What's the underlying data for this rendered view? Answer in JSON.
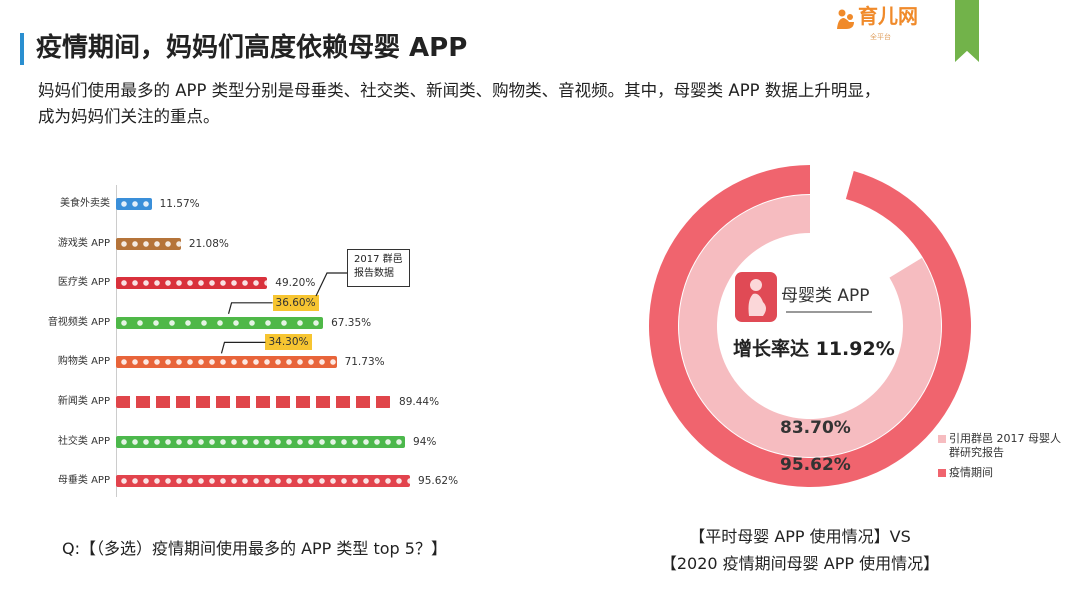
{
  "header": {
    "title": "疫情期间，妈妈们高度依赖母婴 APP",
    "subtitle_line1": "妈妈们使用最多的 APP 类型分别是母垂类、社交类、新闻类、购物类、音视频。其中，母婴类 APP 数据上升明显，",
    "subtitle_line2": "成为妈妈们关注的重点。",
    "logo_text": "育儿网",
    "logo_sub": "全平台",
    "ribbon_color": "#72b34a",
    "accent_color": "#2a8fd0"
  },
  "chart_data": [
    {
      "type": "bar",
      "orientation": "horizontal",
      "categories": [
        "美食外卖类",
        "游戏类 APP",
        "医疗类 APP",
        "音视频类 APP",
        "购物类 APP",
        "新闻类 APP",
        "社交类 APP",
        "母垂类 APP"
      ],
      "values": [
        11.57,
        21.08,
        49.2,
        67.35,
        71.73,
        89.44,
        94,
        95.62
      ],
      "labels": [
        "11.57%",
        "21.08%",
        "49.20%",
        "67.35%",
        "71.73%",
        "89.44%",
        "94%",
        "95.62%"
      ],
      "colors": [
        "#3a8fd9",
        "#b5743a",
        "#d9313c",
        "#4fb848",
        "#e8643a",
        "#e0454a",
        "#4cb84c",
        "#e2434d"
      ],
      "icons": [
        "food-delivery-icon",
        "game-icon",
        "medical-icon",
        "video-play-icon",
        "shopping-icon",
        "news-icon",
        "wechat-icon",
        "mother-baby-icon"
      ],
      "annotations": [
        {
          "category": "音视频类 APP",
          "value": 36.6,
          "label": "36.60%"
        },
        {
          "category": "购物类 APP",
          "value": 34.3,
          "label": "34.30%"
        }
      ],
      "callout": {
        "line1": "2017 群邑",
        "line2": "报告数据"
      },
      "question": "Q:【（多选）疫情期间使用最多的 APP 类型 top 5？】"
    },
    {
      "type": "pie",
      "subtype": "donut",
      "series": [
        {
          "name": "引用群邑 2017 母婴人群研究报告",
          "value": 83.7,
          "label": "83.70%",
          "color": "#f6bcc0"
        },
        {
          "name": "疫情期间",
          "value": 95.62,
          "label": "95.62%",
          "color": "#f0646e"
        }
      ],
      "center": {
        "app_label": "母婴类 APP",
        "growth": "增长率达 11.92%"
      },
      "legend": {
        "placement": "bottom-right",
        "item1_line1": "引用群邑 2017 母婴人",
        "item1_line2": "群研究报告",
        "item2": "疫情期间"
      },
      "caption_line1": "【平时母婴 APP 使用情况】VS",
      "caption_line2": "【2020 疫情期间母婴 APP 使用情况】"
    }
  ]
}
